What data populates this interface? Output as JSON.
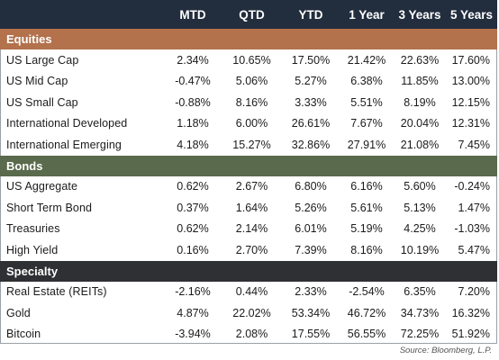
{
  "header": {
    "columns": [
      "MTD",
      "QTD",
      "YTD",
      "1 Year",
      "3 Years",
      "5 Years"
    ]
  },
  "colors": {
    "header_bg": "#222d3d",
    "equities_bg": "#b3714c",
    "bonds_bg": "#5a6a4d",
    "specialty_bg": "#2f3033"
  },
  "sections": [
    {
      "title": "Equities",
      "rows": [
        {
          "label": "US Large Cap",
          "values": [
            "2.34%",
            "10.65%",
            "17.50%",
            "21.42%",
            "22.63%",
            "17.60%"
          ]
        },
        {
          "label": "US Mid Cap",
          "values": [
            "-0.47%",
            "5.06%",
            "5.27%",
            "6.38%",
            "11.85%",
            "13.00%"
          ]
        },
        {
          "label": "US Small Cap",
          "values": [
            "-0.88%",
            "8.16%",
            "3.33%",
            "5.51%",
            "8.19%",
            "12.15%"
          ]
        },
        {
          "label": "International Developed",
          "values": [
            "1.18%",
            "6.00%",
            "26.61%",
            "7.67%",
            "20.04%",
            "12.31%"
          ]
        },
        {
          "label": "International Emerging",
          "values": [
            "4.18%",
            "15.27%",
            "32.86%",
            "27.91%",
            "21.08%",
            "7.45%"
          ]
        }
      ]
    },
    {
      "title": "Bonds",
      "rows": [
        {
          "label": "US Aggregate",
          "values": [
            "0.62%",
            "2.67%",
            "6.80%",
            "6.16%",
            "5.60%",
            "-0.24%"
          ]
        },
        {
          "label": "Short Term Bond",
          "values": [
            "0.37%",
            "1.64%",
            "5.26%",
            "5.61%",
            "5.13%",
            "1.47%"
          ]
        },
        {
          "label": "Treasuries",
          "values": [
            "0.62%",
            "2.14%",
            "6.01%",
            "5.19%",
            "4.25%",
            "-1.03%"
          ]
        },
        {
          "label": "High Yield",
          "values": [
            "0.16%",
            "2.70%",
            "7.39%",
            "8.16%",
            "10.19%",
            "5.47%"
          ]
        }
      ]
    },
    {
      "title": "Specialty",
      "rows": [
        {
          "label": "Real Estate (REITs)",
          "values": [
            "-2.16%",
            "0.44%",
            "2.33%",
            "-2.54%",
            "6.35%",
            "7.20%"
          ]
        },
        {
          "label": "Gold",
          "values": [
            "4.87%",
            "22.02%",
            "53.34%",
            "46.72%",
            "34.73%",
            "16.32%"
          ]
        },
        {
          "label": "Bitcoin",
          "values": [
            "-3.94%",
            "2.08%",
            "17.55%",
            "56.55%",
            "72.25%",
            "51.92%"
          ]
        }
      ]
    }
  ],
  "footer": {
    "source": "Source: Bloomberg, L.P."
  }
}
